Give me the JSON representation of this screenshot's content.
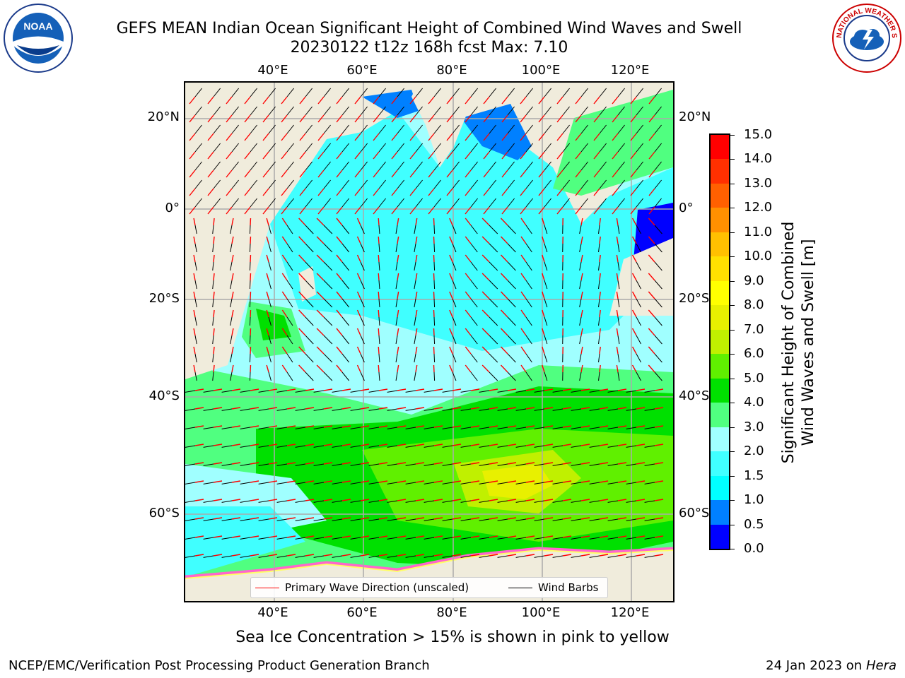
{
  "title": {
    "line1": "GEFS MEAN Indian Ocean Significant Height of Combined Wind Waves and Swell",
    "line2": "20230122 t12z 168h fcst   Max: 7.10"
  },
  "logos": {
    "left": {
      "icon": "noaa-logo",
      "text": "NOAA"
    },
    "right": {
      "icon": "nws-logo",
      "text": "NATIONAL WEATHER SERVICE"
    }
  },
  "axes": {
    "lon_ticks": [
      "40°E",
      "60°E",
      "80°E",
      "100°E",
      "120°E"
    ],
    "lat_ticks": [
      "20°N",
      "0°",
      "20°S",
      "40°S",
      "60°S"
    ],
    "lon_values": [
      40,
      60,
      80,
      100,
      120
    ],
    "lat_values": [
      20,
      0,
      -20,
      -40,
      -60
    ],
    "lon_range": [
      20,
      130
    ],
    "lat_range": [
      -77,
      28
    ],
    "grid": true
  },
  "legend": {
    "wave_label": "Primary Wave Direction (unscaled)",
    "wave_color": "#ff0000",
    "wind_label": "Wind Barbs",
    "wind_color": "#000000"
  },
  "colorbar": {
    "label_line1": "Significant Height of Combined",
    "label_line2": "Wind Waves and Swell [m]",
    "levels": [
      "0.0",
      "0.5",
      "1.0",
      "1.5",
      "2.0",
      "3.0",
      "4.0",
      "5.0",
      "6.0",
      "7.0",
      "8.0",
      "9.0",
      "10.0",
      "11.0",
      "12.0",
      "13.0",
      "14.0",
      "15.0"
    ],
    "colors": [
      "#0000ff",
      "#0080ff",
      "#00ffff",
      "#40ffff",
      "#a0ffff",
      "#50ff80",
      "#00e000",
      "#60f000",
      "#c0f000",
      "#e8f000",
      "#ffff00",
      "#ffe000",
      "#ffc000",
      "#ff9000",
      "#ff6000",
      "#ff3000",
      "#ff0000"
    ]
  },
  "notes": {
    "ice": "Sea Ice Concentration > 15% is shown in pink to yellow",
    "footer_left": "NCEP/EMC/Verification Post Processing Product Generation Branch",
    "footer_right_date": "24 Jan 2023 on ",
    "footer_right_host": "Hera"
  }
}
